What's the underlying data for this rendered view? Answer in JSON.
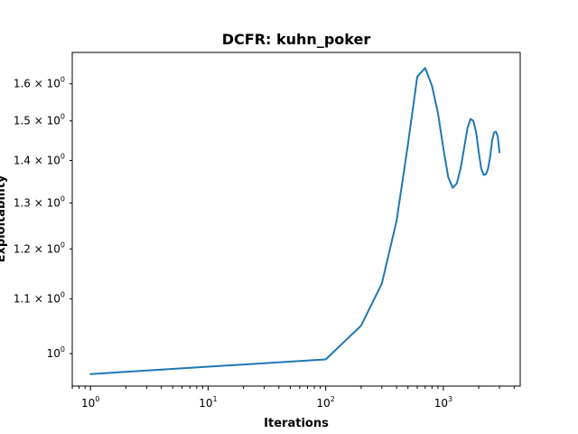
{
  "chart_data": {
    "type": "line",
    "title": "DCFR: kuhn_poker",
    "xlabel": "Iterations",
    "ylabel": "Exploitability",
    "xscale": "log",
    "yscale": "log",
    "xlim": [
      0.7,
      4500
    ],
    "ylim": [
      0.945,
      1.69
    ],
    "grid": false,
    "x_ticks": [
      {
        "value": 1,
        "base": "10",
        "exp": "0"
      },
      {
        "value": 10,
        "base": "10",
        "exp": "1"
      },
      {
        "value": 100,
        "base": "10",
        "exp": "2"
      },
      {
        "value": 1000,
        "base": "10",
        "exp": "3"
      }
    ],
    "y_ticks": [
      {
        "value": 1.0,
        "label": "10",
        "exp": "0"
      },
      {
        "value": 1.1,
        "label": "1.1 × 10",
        "exp": "0"
      },
      {
        "value": 1.2,
        "label": "1.2 × 10",
        "exp": "0"
      },
      {
        "value": 1.3,
        "label": "1.3 × 10",
        "exp": "0"
      },
      {
        "value": 1.4,
        "label": "1.4 × 10",
        "exp": "0"
      },
      {
        "value": 1.5,
        "label": "1.5 × 10",
        "exp": "0"
      },
      {
        "value": 1.6,
        "label": "1.6 × 10",
        "exp": "0"
      }
    ],
    "series": [
      {
        "color": "#1f77b4",
        "x": [
          1,
          100,
          200,
          300,
          400,
          500,
          600,
          700,
          800,
          900,
          1000,
          1100,
          1200,
          1300,
          1400,
          1500,
          1600,
          1700,
          1800,
          1900,
          2000,
          2100,
          2200,
          2300,
          2400,
          2500,
          2600,
          2700,
          2800,
          2900,
          3000
        ],
        "y": [
          0.965,
          0.99,
          1.05,
          1.13,
          1.26,
          1.44,
          1.62,
          1.645,
          1.595,
          1.52,
          1.43,
          1.36,
          1.335,
          1.345,
          1.38,
          1.43,
          1.48,
          1.505,
          1.5,
          1.47,
          1.42,
          1.38,
          1.365,
          1.367,
          1.38,
          1.41,
          1.45,
          1.47,
          1.472,
          1.46,
          1.42
        ]
      }
    ]
  }
}
